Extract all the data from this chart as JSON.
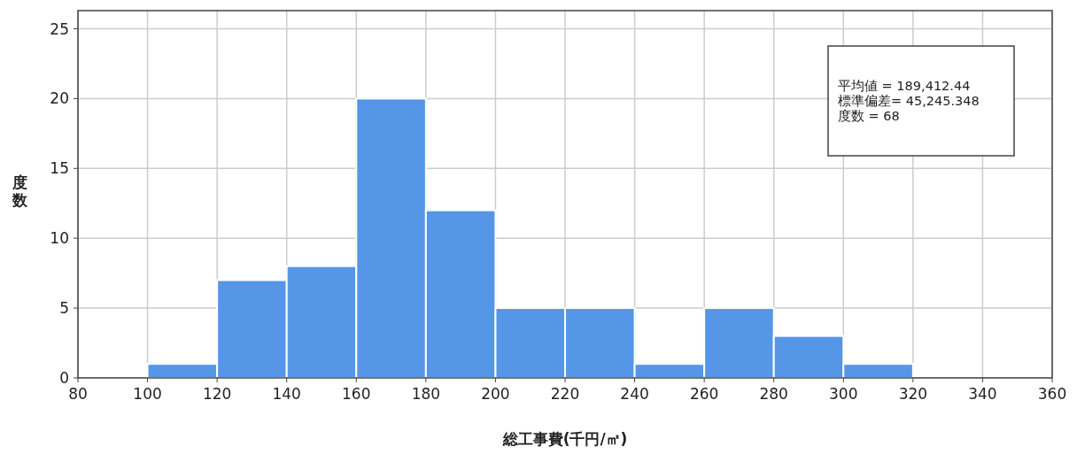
{
  "chart_data": {
    "type": "histogram",
    "xlabel": "総工事費(千円/㎡)",
    "ylabel": "度数",
    "bins": [
      100,
      120,
      140,
      160,
      180,
      200,
      220,
      240,
      260,
      280,
      300,
      320
    ],
    "values": [
      1,
      7,
      8,
      20,
      12,
      5,
      5,
      1,
      5,
      3,
      1
    ],
    "color": "#5596e6",
    "xlim": [
      80,
      360
    ],
    "xticks": [
      80,
      100,
      120,
      140,
      160,
      180,
      200,
      220,
      240,
      260,
      280,
      300,
      320,
      340,
      360
    ],
    "ylim": [
      0,
      26.3
    ],
    "yticks": [
      0,
      5,
      10,
      15,
      20,
      25
    ],
    "grid": true,
    "annotations": [
      "平均値 = 189,412.44",
      "標準偏差= 45,245.348",
      "度数 = 68"
    ]
  }
}
